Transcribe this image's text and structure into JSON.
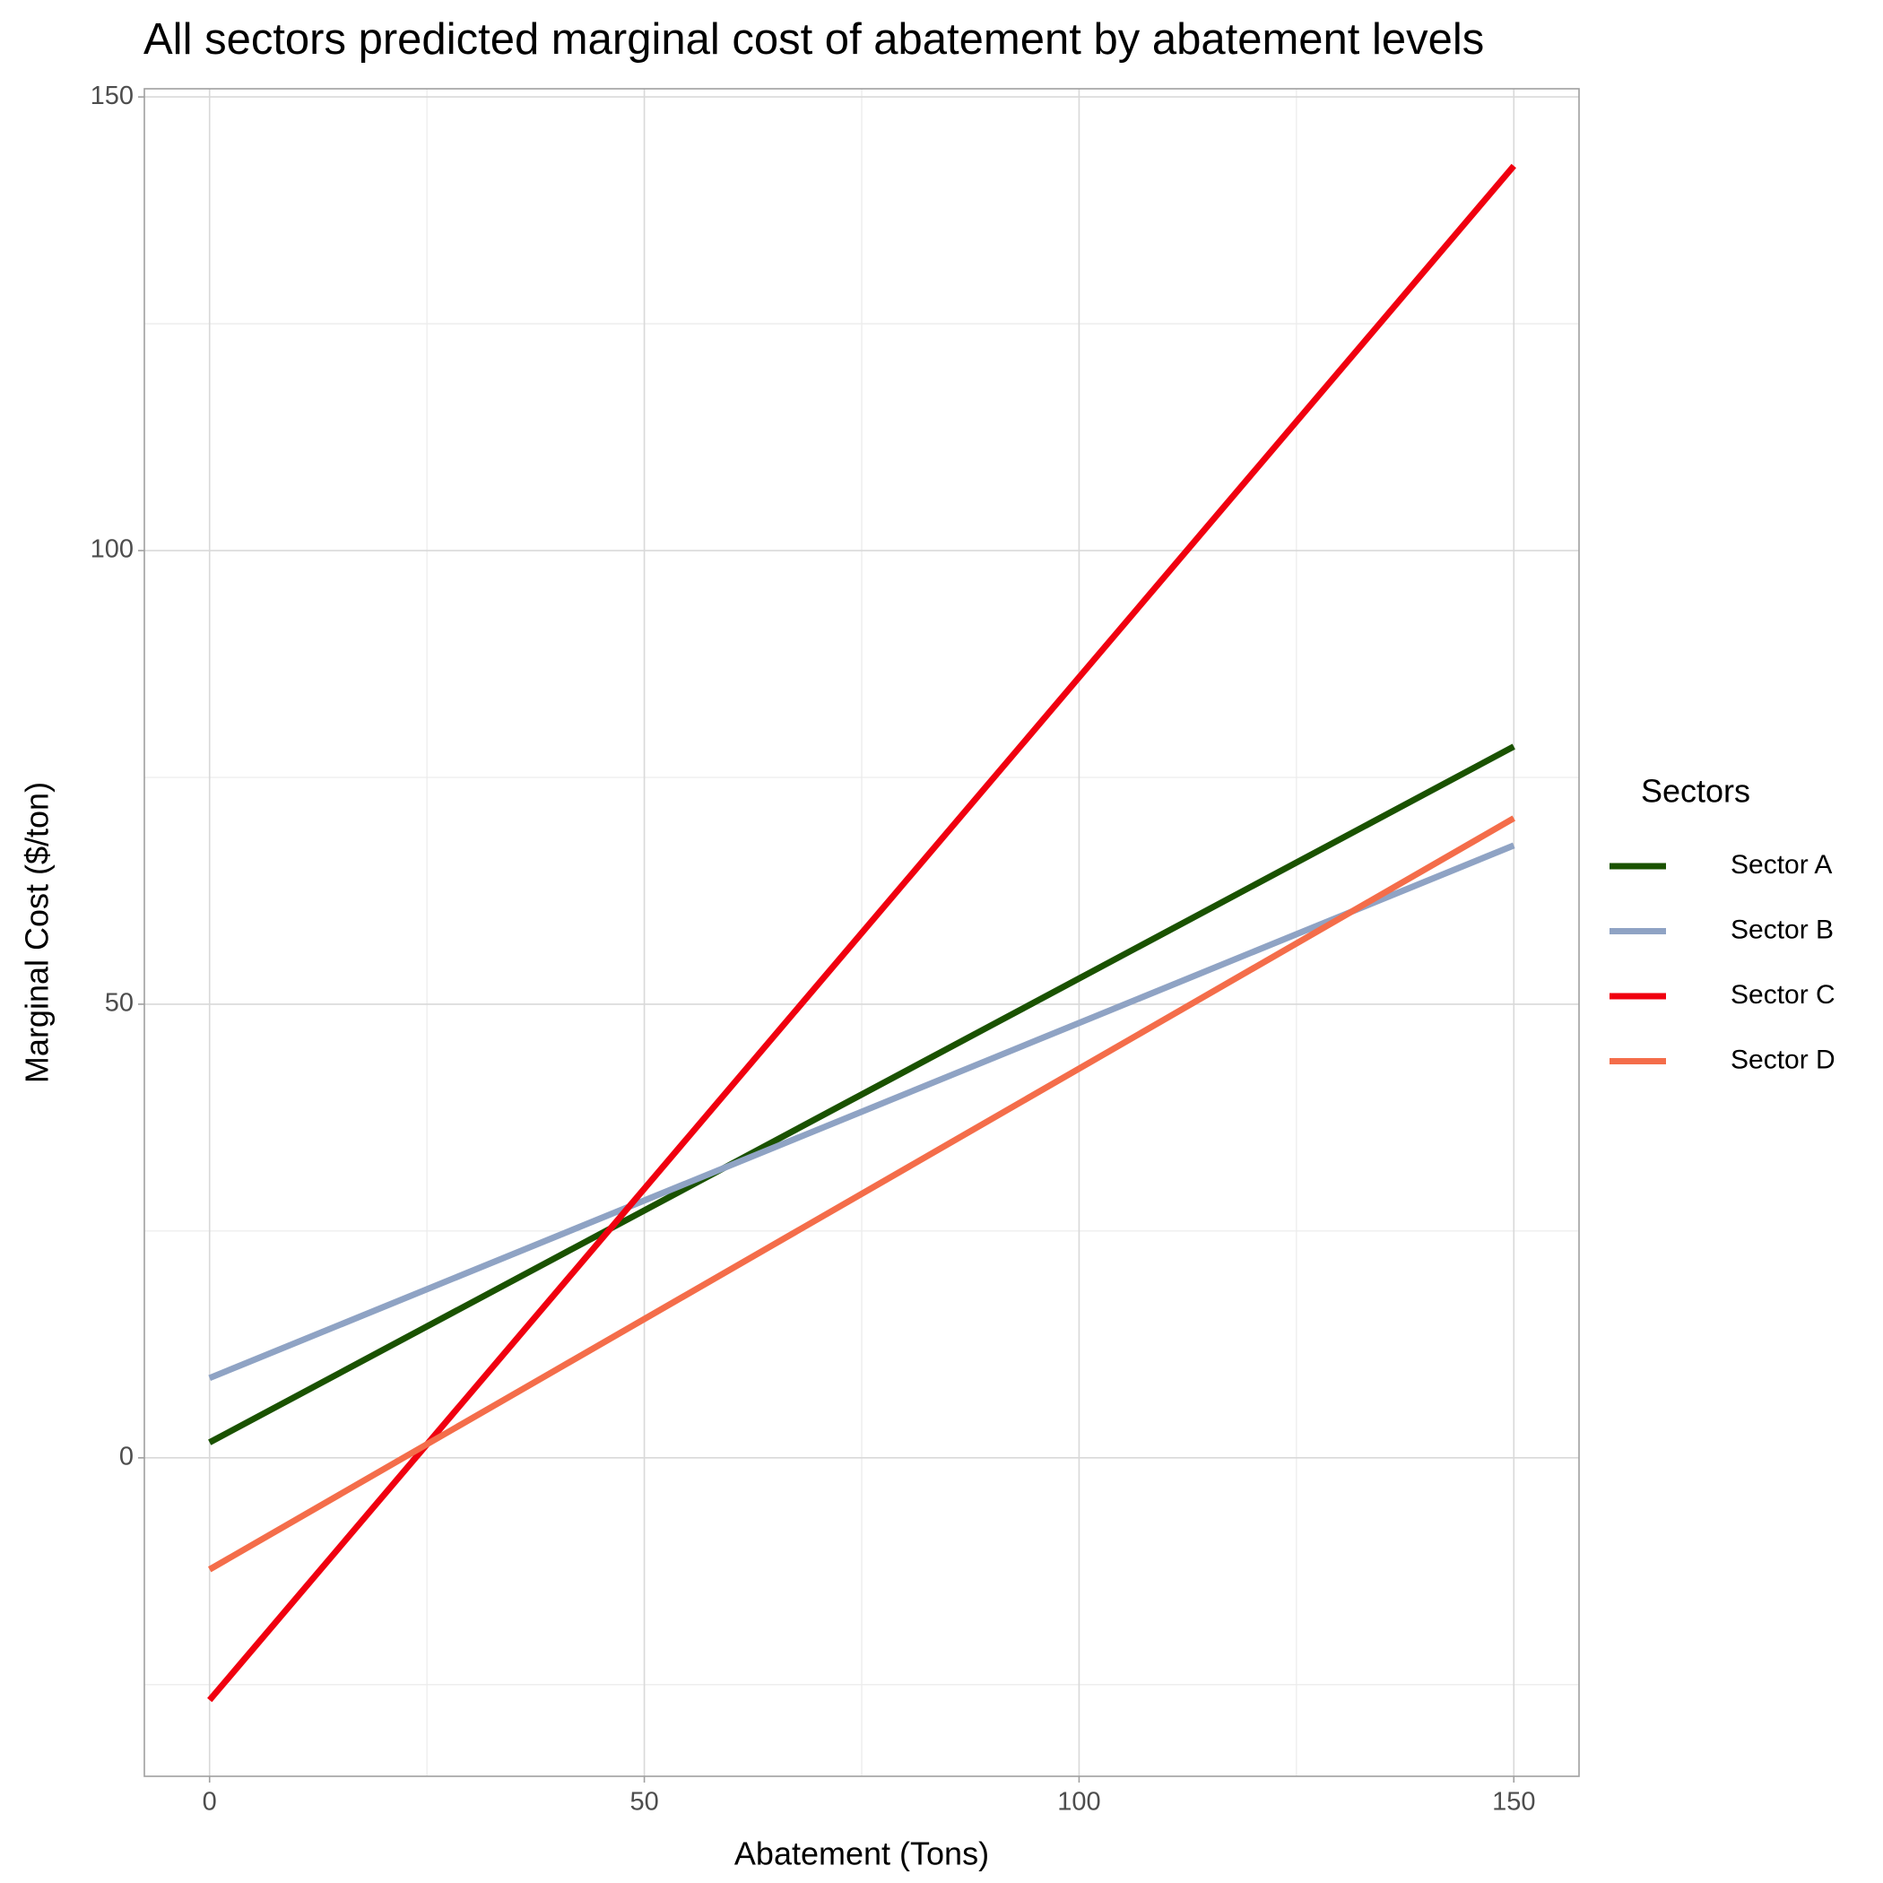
{
  "chart_data": {
    "type": "line",
    "title": "All sectors predicted marginal cost of abatement by abatement levels",
    "x_label": "Abatement (Tons)",
    "y_label": "Marginal Cost ($/ton)",
    "legend_title": "Sectors",
    "legend_position": "right",
    "x": [
      0,
      150
    ],
    "series": [
      {
        "name": "Sector A",
        "color": "#1a5200",
        "values": [
          1.7,
          78.4
        ]
      },
      {
        "name": "Sector B",
        "color": "#8fa3c4",
        "values": [
          8.8,
          67.5
        ]
      },
      {
        "name": "Sector C",
        "color": "#f0000f",
        "values": [
          -26.7,
          142.4
        ]
      },
      {
        "name": "Sector D",
        "color": "#f46d4a",
        "values": [
          -12.3,
          70.5
        ]
      }
    ],
    "xlim": [
      -7.5,
      157.5
    ],
    "ylim": [
      -35.1,
      150.9
    ],
    "xticks": [
      0,
      50,
      100,
      150
    ],
    "yticks": [
      0,
      50,
      100,
      150
    ],
    "minor_xticks": [
      25,
      75,
      125
    ],
    "minor_yticks": [
      -25,
      25,
      75,
      125
    ],
    "grid": true
  }
}
